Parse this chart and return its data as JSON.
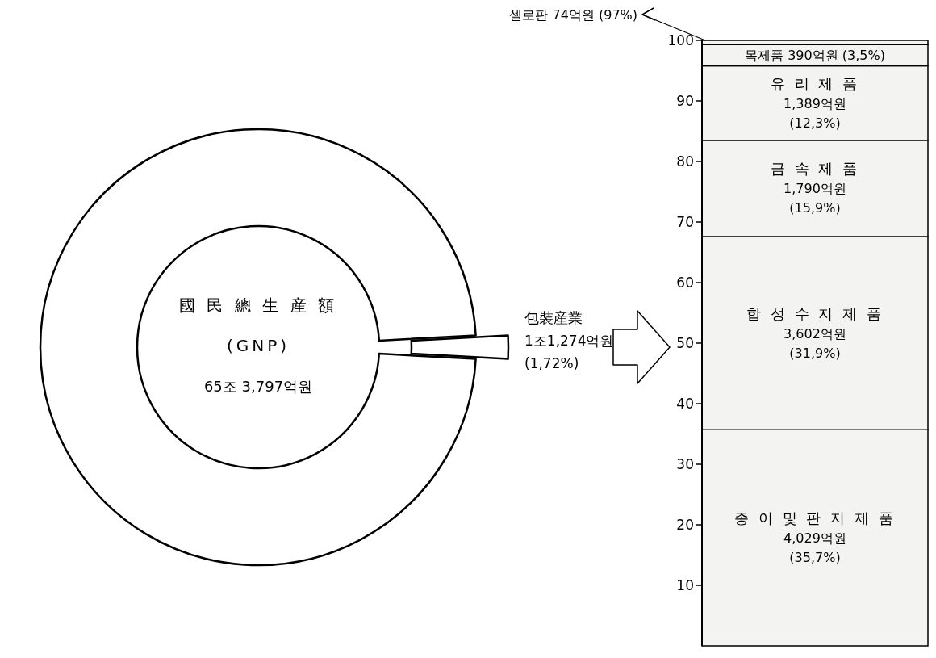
{
  "chart_data": [
    {
      "type": "donut",
      "categories": [
        "國 民 總 生 産 額 (GNP)",
        "包裝産業"
      ],
      "values": [
        98.28,
        1.72
      ],
      "colors": [
        "#ffffff",
        "#ffffff"
      ],
      "annotations": [
        "65조 3,797억원",
        "1조1,274억원 (1,72%)"
      ]
    },
    {
      "type": "bar",
      "stacked": true,
      "categories": [
        null
      ],
      "ylim": [
        0,
        100
      ],
      "yticks": [
        10,
        20,
        30,
        40,
        50,
        60,
        70,
        80,
        90,
        100
      ],
      "grid": false,
      "series": [
        {
          "name": "종 이 및 판 지 제 품",
          "color": "#f3f3f1",
          "values": [
            35.7
          ]
        },
        {
          "name": "합 성 수 지 제 품",
          "color": "#f3f3f1",
          "values": [
            31.9
          ]
        },
        {
          "name": "금 속 제 품",
          "color": "#f3f3f1",
          "values": [
            15.9
          ]
        },
        {
          "name": "유 리 제 품",
          "color": "#f3f3f1",
          "values": [
            12.3
          ]
        },
        {
          "name": "목제품",
          "color": "#f3f3f1",
          "values": [
            3.5
          ]
        },
        {
          "name": "셀로판",
          "color": "#f3f3f1",
          "values": [
            0.7
          ]
        }
      ],
      "annotations": [
        "4,029억원 (35,7%)",
        "3,602억원 (31,9%)",
        "1,790억원 (15,9%)",
        "1,389억원 (12,3%)",
        "390억원 (3,5%)",
        "74억원 (97%)"
      ]
    }
  ]
}
